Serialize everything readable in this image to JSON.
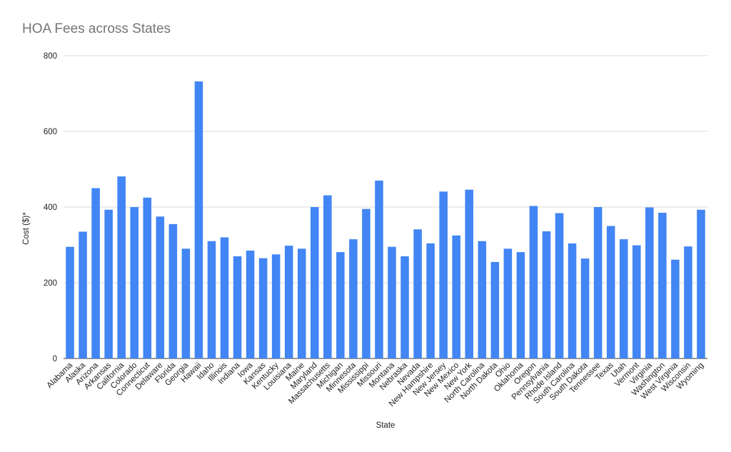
{
  "chart_data": {
    "type": "bar",
    "title": "HOA Fees across States",
    "xlabel": "State",
    "ylabel": "Cost ($)*",
    "ylim": [
      0,
      800
    ],
    "yticks": [
      "0",
      "200",
      "400",
      "600",
      "800"
    ],
    "grid": true,
    "legend": "none",
    "bar_color": "#4285f4",
    "categories": [
      "Alabama",
      "Alaska",
      "Arizona",
      "Arkansas",
      "California",
      "Colorado",
      "Connecticut",
      "Delaware",
      "Florida",
      "Georgia",
      "Hawaii",
      "Idaho",
      "Illinois",
      "Indiana",
      "Iowa",
      "Kansas",
      "Kentucky",
      "Louisiana",
      "Maine",
      "Maryland",
      "Massachusetts",
      "Michigan",
      "Minnesota",
      "Mississippi",
      "Missouri",
      "Montana",
      "Nebraska",
      "Nevada",
      "New Hampshire",
      "New Jersey",
      "New Mexico",
      "New York",
      "North Carolina",
      "North Dakota",
      "Ohio",
      "Oklahoma",
      "Oregon",
      "Pennsylvania",
      "Rhode Island",
      "South Carolina",
      "South Dakota",
      "Tennessee",
      "Texas",
      "Utah",
      "Vermont",
      "Virginia",
      "Washington",
      "West Virginia",
      "Wisconsin",
      "Wyoming"
    ],
    "values": [
      295,
      335,
      450,
      393,
      481,
      400,
      425,
      375,
      355,
      290,
      732,
      310,
      320,
      270,
      285,
      265,
      275,
      298,
      290,
      400,
      431,
      281,
      315,
      395,
      470,
      295,
      270,
      341,
      304,
      441,
      325,
      446,
      310,
      255,
      290,
      281,
      403,
      336,
      384,
      304,
      264,
      400,
      350,
      315,
      299,
      399,
      385,
      261,
      296,
      393
    ]
  }
}
